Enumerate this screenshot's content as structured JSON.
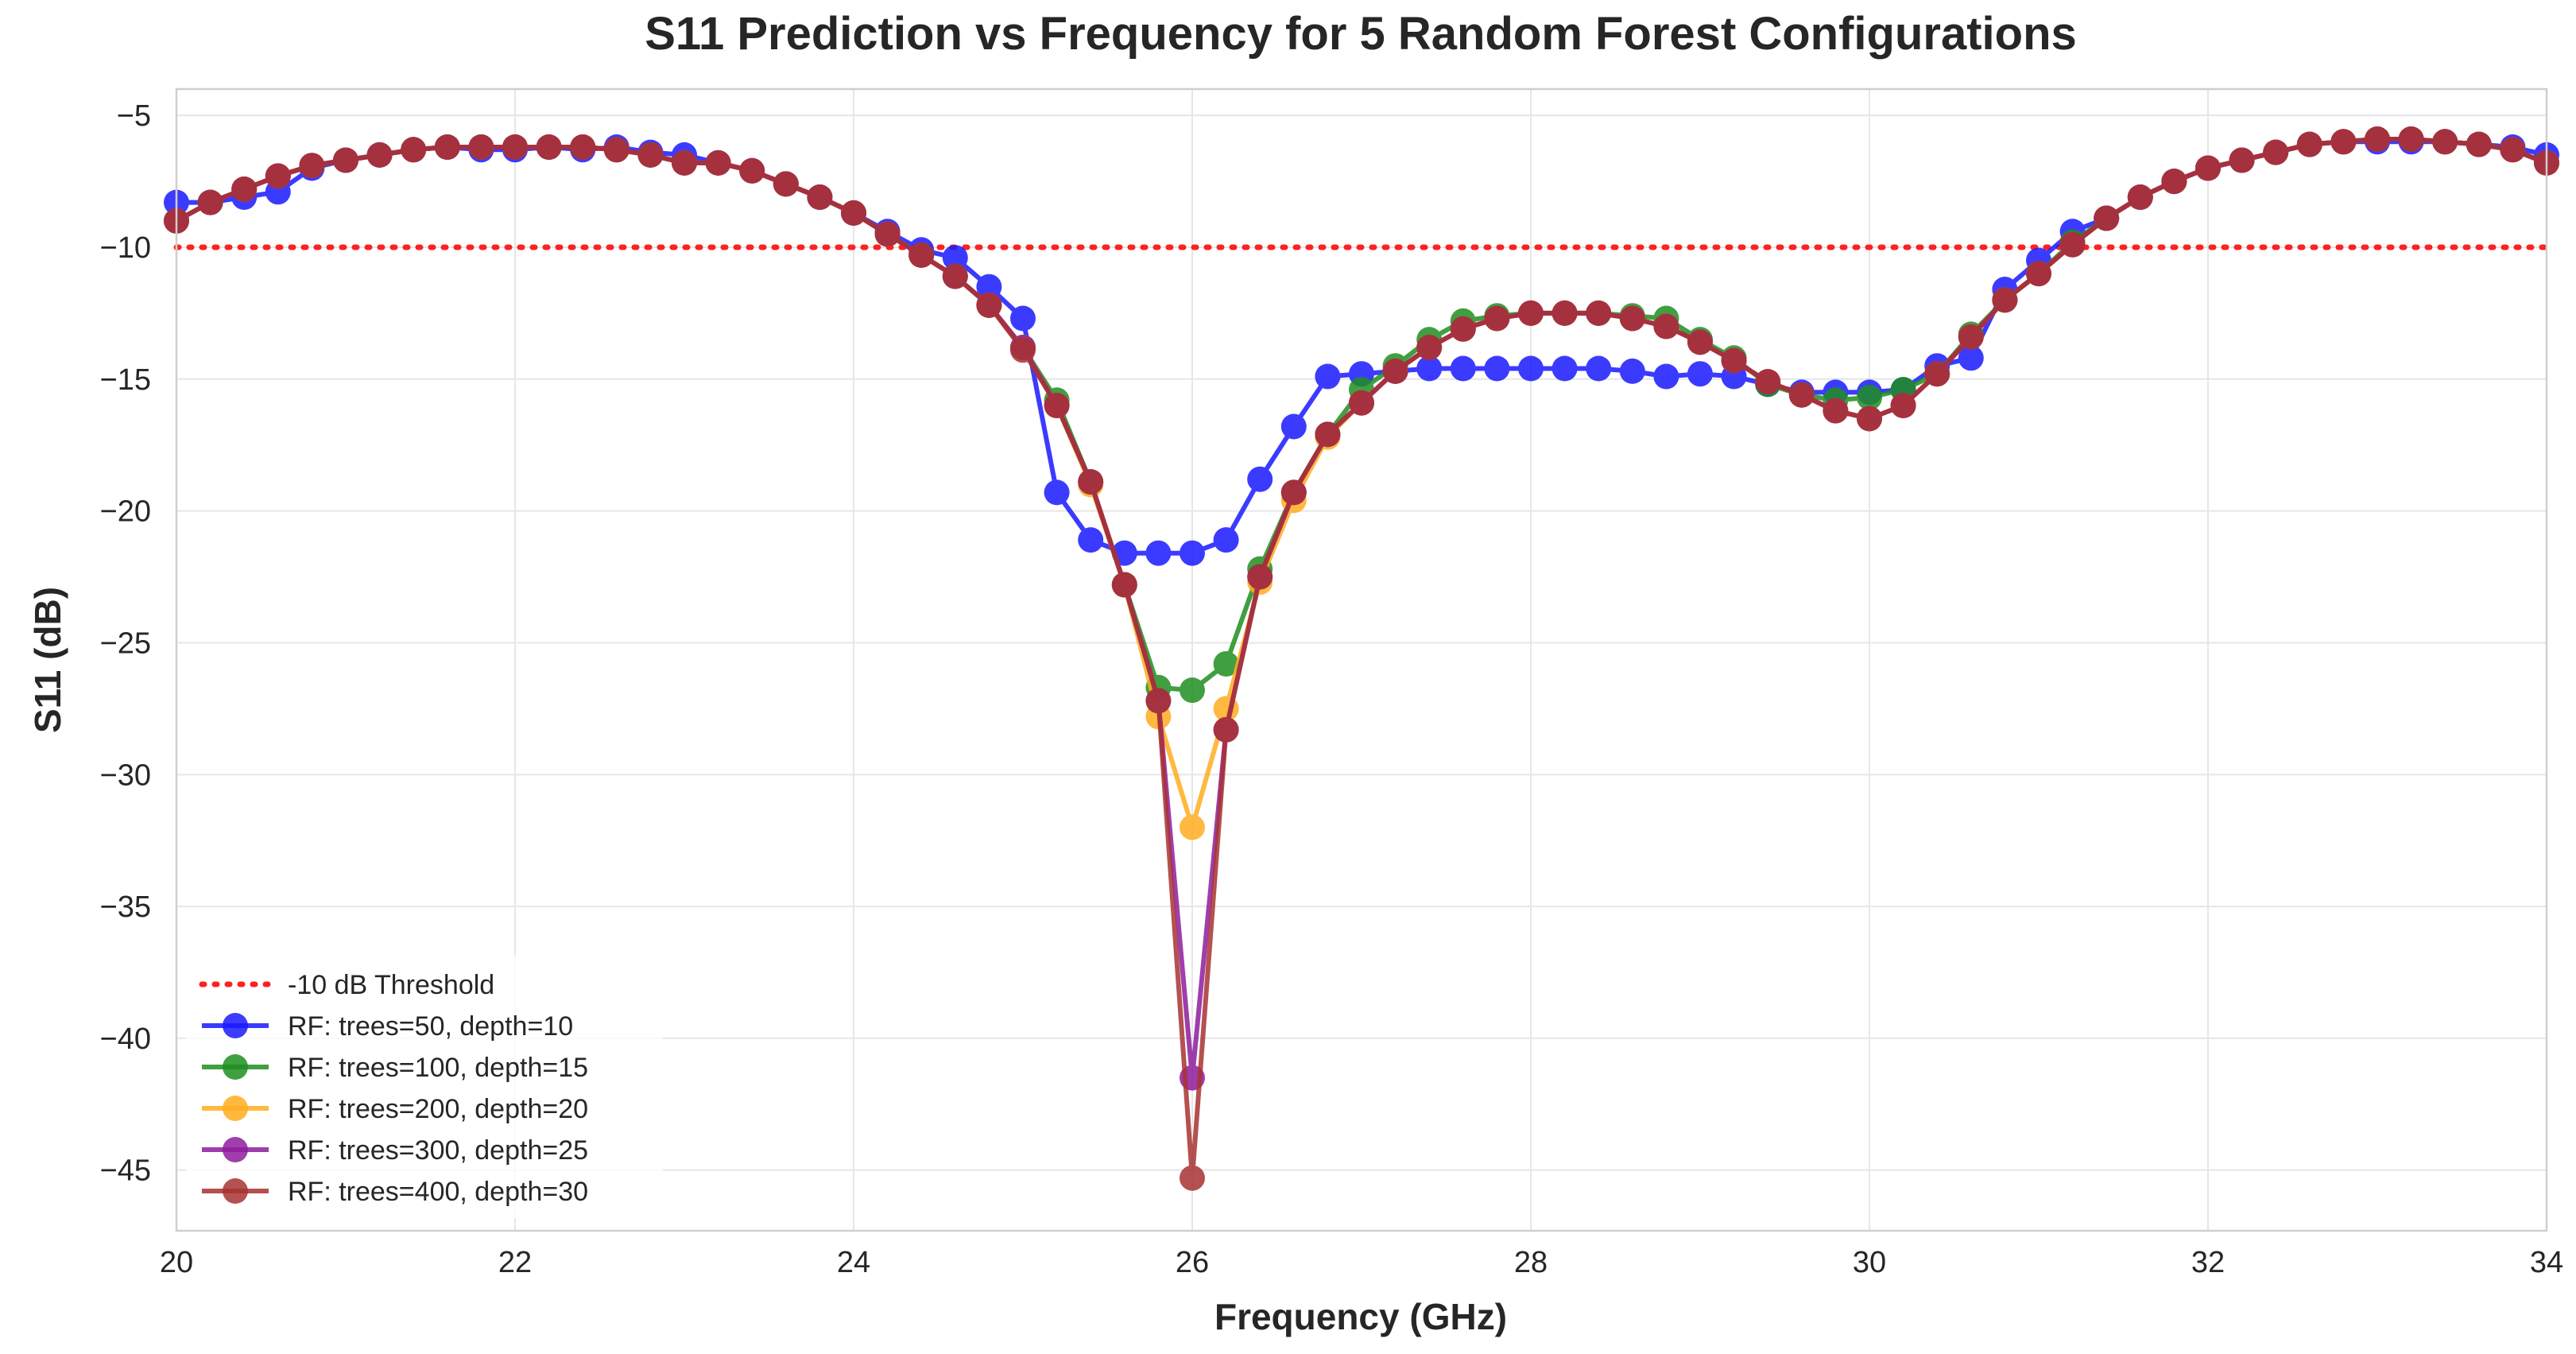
{
  "chart_data": {
    "type": "line",
    "title": "S11 Prediction vs Frequency for 5 Random Forest Configurations",
    "xlabel": "Frequency (GHz)",
    "ylabel": "S11 (dB)",
    "xlim": [
      20,
      34
    ],
    "ylim": [
      -47.3,
      -4
    ],
    "xticks": [
      20,
      22,
      24,
      26,
      28,
      30,
      32,
      34
    ],
    "yticks": [
      -5,
      -10,
      -15,
      -20,
      -25,
      -30,
      -35,
      -40,
      -45
    ],
    "grid": true,
    "legend_position": "lower-left",
    "threshold": {
      "name": "-10 dB Threshold",
      "value": -10,
      "color": "#ff2020",
      "style": "dotted"
    },
    "x": [
      20.0,
      20.2,
      20.4,
      20.6,
      20.8,
      21.0,
      21.2,
      21.4,
      21.6,
      21.8,
      22.0,
      22.2,
      22.4,
      22.6,
      22.8,
      23.0,
      23.2,
      23.4,
      23.6,
      23.8,
      24.0,
      24.2,
      24.4,
      24.6,
      24.8,
      25.0,
      25.2,
      25.4,
      25.6,
      25.8,
      26.0,
      26.2,
      26.4,
      26.6,
      26.8,
      27.0,
      27.2,
      27.4,
      27.6,
      27.8,
      28.0,
      28.2,
      28.4,
      28.6,
      28.8,
      29.0,
      29.2,
      29.4,
      29.6,
      29.8,
      30.0,
      30.2,
      30.4,
      30.6,
      30.8,
      31.0,
      31.2,
      31.4,
      31.6,
      31.8,
      32.0,
      32.2,
      32.4,
      32.6,
      32.8,
      33.0,
      33.2,
      33.4,
      33.6,
      33.8,
      34.0
    ],
    "series": [
      {
        "name": "RF: trees=50, depth=10",
        "color": "#1a1aff",
        "values": [
          -8.3,
          -8.3,
          -8.1,
          -7.9,
          -7.0,
          -6.7,
          -6.5,
          -6.3,
          -6.2,
          -6.3,
          -6.3,
          -6.2,
          -6.3,
          -6.2,
          -6.4,
          -6.5,
          -6.8,
          -7.1,
          -7.6,
          -8.1,
          -8.7,
          -9.4,
          -10.1,
          -10.4,
          -11.5,
          -12.7,
          -19.3,
          -21.1,
          -21.6,
          -21.6,
          -21.6,
          -21.1,
          -18.8,
          -16.8,
          -14.9,
          -14.8,
          -14.7,
          -14.6,
          -14.6,
          -14.6,
          -14.6,
          -14.6,
          -14.6,
          -14.7,
          -14.9,
          -14.8,
          -14.9,
          -15.2,
          -15.5,
          -15.5,
          -15.5,
          -15.4,
          -14.5,
          -14.2,
          -11.6,
          -10.5,
          -9.4,
          -8.9,
          -8.1,
          -7.5,
          -7.0,
          -6.7,
          -6.4,
          -6.1,
          -6.0,
          -6.0,
          -6.0,
          -6.0,
          -6.1,
          -6.2,
          -6.5
        ]
      },
      {
        "name": "RF: trees=100, depth=15",
        "color": "#1f8f1f",
        "values": [
          -9.0,
          -8.3,
          -7.8,
          -7.3,
          -6.9,
          -6.7,
          -6.5,
          -6.3,
          -6.2,
          -6.2,
          -6.2,
          -6.2,
          -6.2,
          -6.3,
          -6.5,
          -6.8,
          -6.8,
          -7.1,
          -7.6,
          -8.1,
          -8.7,
          -9.5,
          -10.3,
          -11.1,
          -12.2,
          -13.8,
          -15.8,
          -18.9,
          -22.8,
          -26.7,
          -26.8,
          -25.8,
          -22.2,
          -19.3,
          -17.1,
          -15.4,
          -14.5,
          -13.5,
          -12.8,
          -12.6,
          -12.5,
          -12.5,
          -12.5,
          -12.6,
          -12.7,
          -13.5,
          -14.2,
          -15.2,
          -15.6,
          -15.8,
          -15.7,
          -15.4,
          -14.8,
          -13.3,
          -12.0,
          -11.0,
          -9.8,
          -8.9,
          -8.1,
          -7.5,
          -7.0,
          -6.7,
          -6.4,
          -6.1,
          -6.0,
          -5.9,
          -5.9,
          -6.0,
          -6.1,
          -6.3,
          -6.8
        ]
      },
      {
        "name": "RF: trees=200, depth=20",
        "color": "#ffad1f",
        "values": [
          -9.0,
          -8.3,
          -7.8,
          -7.3,
          -6.9,
          -6.7,
          -6.5,
          -6.3,
          -6.2,
          -6.2,
          -6.2,
          -6.2,
          -6.2,
          -6.3,
          -6.5,
          -6.8,
          -6.8,
          -7.1,
          -7.6,
          -8.1,
          -8.7,
          -9.5,
          -10.3,
          -11.1,
          -12.2,
          -13.8,
          -16.0,
          -19.0,
          -22.8,
          -27.8,
          -32.0,
          -27.5,
          -22.7,
          -19.6,
          -17.2,
          -15.9,
          -14.7,
          -13.8,
          -13.1,
          -12.7,
          -12.5,
          -12.5,
          -12.5,
          -12.7,
          -13.0,
          -13.6,
          -14.3,
          -15.1,
          -15.6,
          -16.2,
          -16.5,
          -16.0,
          -14.8,
          -13.4,
          -12.0,
          -11.0,
          -9.9,
          -8.9,
          -8.1,
          -7.5,
          -7.0,
          -6.7,
          -6.4,
          -6.1,
          -6.0,
          -5.9,
          -5.9,
          -6.0,
          -6.1,
          -6.3,
          -6.8
        ]
      },
      {
        "name": "RF: trees=300, depth=25",
        "color": "#8e1c9e",
        "values": [
          -9.0,
          -8.3,
          -7.8,
          -7.3,
          -6.9,
          -6.7,
          -6.5,
          -6.3,
          -6.2,
          -6.2,
          -6.2,
          -6.2,
          -6.2,
          -6.3,
          -6.5,
          -6.8,
          -6.8,
          -7.1,
          -7.6,
          -8.1,
          -8.7,
          -9.5,
          -10.3,
          -11.1,
          -12.2,
          -13.8,
          -16.0,
          -18.9,
          -22.8,
          -27.2,
          -41.5,
          -28.3,
          -22.5,
          -19.3,
          -17.1,
          -15.9,
          -14.7,
          -13.8,
          -13.1,
          -12.7,
          -12.5,
          -12.5,
          -12.5,
          -12.7,
          -13.0,
          -13.6,
          -14.3,
          -15.1,
          -15.6,
          -16.2,
          -16.5,
          -16.0,
          -14.8,
          -13.4,
          -12.0,
          -11.0,
          -9.9,
          -8.9,
          -8.1,
          -7.5,
          -7.0,
          -6.7,
          -6.4,
          -6.1,
          -6.0,
          -5.9,
          -5.9,
          -6.0,
          -6.1,
          -6.3,
          -6.8
        ]
      },
      {
        "name": "RF: trees=400, depth=30",
        "color": "#a83232",
        "values": [
          -9.0,
          -8.3,
          -7.8,
          -7.3,
          -6.9,
          -6.7,
          -6.5,
          -6.3,
          -6.2,
          -6.2,
          -6.2,
          -6.2,
          -6.2,
          -6.3,
          -6.5,
          -6.8,
          -6.8,
          -7.1,
          -7.6,
          -8.1,
          -8.7,
          -9.5,
          -10.3,
          -11.1,
          -12.2,
          -13.9,
          -16.0,
          -18.9,
          -22.8,
          -27.2,
          -45.3,
          -28.3,
          -22.5,
          -19.3,
          -17.1,
          -15.9,
          -14.7,
          -13.8,
          -13.1,
          -12.7,
          -12.5,
          -12.5,
          -12.5,
          -12.7,
          -13.0,
          -13.6,
          -14.3,
          -15.1,
          -15.6,
          -16.2,
          -16.5,
          -16.0,
          -14.8,
          -13.4,
          -12.0,
          -11.0,
          -9.9,
          -8.9,
          -8.1,
          -7.5,
          -7.0,
          -6.7,
          -6.4,
          -6.1,
          -6.0,
          -5.9,
          -5.9,
          -6.0,
          -6.1,
          -6.3,
          -6.8
        ]
      }
    ]
  }
}
